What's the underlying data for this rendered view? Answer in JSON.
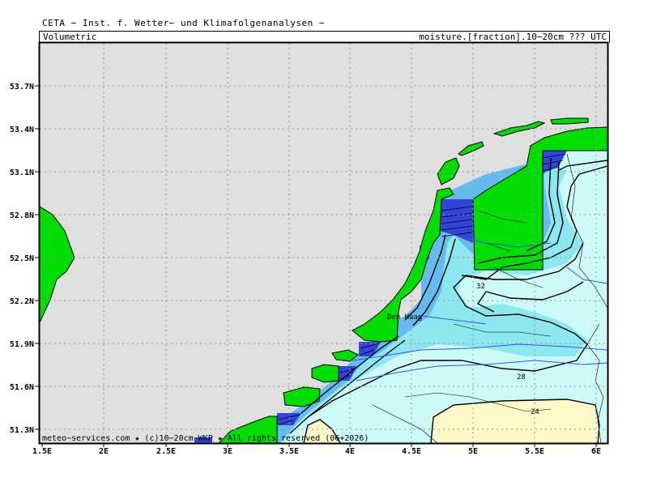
{
  "header": {
    "title": "CETA − Inst. f. Wetter− und Klimafolgenanalysen −",
    "left_label": "Volumetric",
    "right_label": "moisture.[fraction].10−20cm ??? UTC"
  },
  "map": {
    "x_ticks": [
      "1.5E",
      "2E",
      "2.5E",
      "3E",
      "3.5E",
      "4E",
      "4.5E",
      "5E",
      "5.5E",
      "6E"
    ],
    "y_ticks": [
      "53.7N",
      "53.4N",
      "53.1N",
      "52.8N",
      "52.5N",
      "52.2N",
      "51.9N",
      "51.6N",
      "51.3N"
    ],
    "city_label": "Den Haag",
    "contour_labels": [
      "32",
      "28",
      "24"
    ],
    "footer": "meteo−services.com ★ (c)10−20cm WKP ★ All rights reserved (06+2026)",
    "colors": {
      "background": "#dfdfdf",
      "land_masked": "#00dd00",
      "very_light": "#ccfaf8",
      "light_cyan": "#8ce8ee",
      "mid_blue": "#66bbee",
      "deep_blue": "#3344dd",
      "dry_yellow": "#fff8c8"
    }
  }
}
